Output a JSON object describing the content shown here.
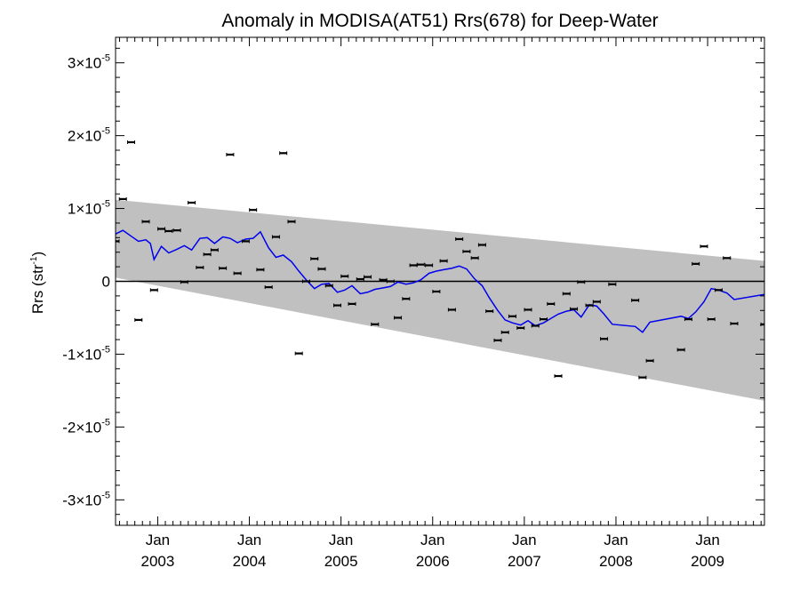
{
  "chart_data": {
    "type": "scatter",
    "title": "Anomaly in MODISA(AT51) Rrs(678) for Deep-Water",
    "ylabel": {
      "base": "Rrs (str",
      "sup": "-1",
      "end": ")"
    },
    "xlabel": "",
    "xlim": [
      2002.54,
      2009.62
    ],
    "ylim": [
      -3.35e-05,
      3.35e-05
    ],
    "grid": false,
    "x_ticks": [
      {
        "x": 2003.0,
        "month": "Jan",
        "year": "2003"
      },
      {
        "x": 2004.0,
        "month": "Jan",
        "year": "2004"
      },
      {
        "x": 2005.0,
        "month": "Jan",
        "year": "2005"
      },
      {
        "x": 2006.0,
        "month": "Jan",
        "year": "2006"
      },
      {
        "x": 2007.0,
        "month": "Jan",
        "year": "2007"
      },
      {
        "x": 2008.0,
        "month": "Jan",
        "year": "2008"
      },
      {
        "x": 2009.0,
        "month": "Jan",
        "year": "2009"
      }
    ],
    "y_ticks": [
      {
        "y": 3e-05,
        "mant": "3×10",
        "exp": "-5"
      },
      {
        "y": 2e-05,
        "mant": "2×10",
        "exp": "-5"
      },
      {
        "y": 1e-05,
        "mant": "1×10",
        "exp": "-5"
      },
      {
        "y": 0,
        "mant": "0",
        "exp": ""
      },
      {
        "y": -1e-05,
        "mant": "-1×10",
        "exp": "-5"
      },
      {
        "y": -2e-05,
        "mant": "-2×10",
        "exp": "-5"
      },
      {
        "y": -3e-05,
        "mant": "-3×10",
        "exp": "-5"
      }
    ],
    "band": {
      "upper": [
        [
          2002.54,
          1.12e-05
        ],
        [
          2009.62,
          2.8e-06
        ]
      ],
      "lower": [
        [
          2002.54,
          5e-07
        ],
        [
          2009.62,
          -1.64e-05
        ]
      ],
      "color": "#c0c0c0"
    },
    "zero_line": 0,
    "colors": {
      "trend": "#0000ee",
      "points": "#000000",
      "band": "#c0c0c0",
      "zero": "#000000"
    },
    "series": [
      {
        "kind": "points",
        "values": [
          [
            2002.54,
            5.5e-06
          ],
          [
            2002.62,
            1.13e-05
          ],
          [
            2002.71,
            1.91e-05
          ],
          [
            2002.79,
            -5.3e-06
          ],
          [
            2002.87,
            8.2e-06
          ],
          [
            2002.96,
            -1.2e-06
          ],
          [
            2003.04,
            7.2e-06
          ],
          [
            2003.12,
            6.9e-06
          ],
          [
            2003.21,
            7e-06
          ],
          [
            2003.29,
            -1e-07
          ],
          [
            2003.37,
            1.08e-05
          ],
          [
            2003.46,
            1.9e-06
          ],
          [
            2003.54,
            3.7e-06
          ],
          [
            2003.62,
            4.3e-06
          ],
          [
            2003.71,
            1.8e-06
          ],
          [
            2003.79,
            1.74e-05
          ],
          [
            2003.87,
            1.1e-06
          ],
          [
            2003.96,
            5.5e-06
          ],
          [
            2004.04,
            9.8e-06
          ],
          [
            2004.12,
            1.6e-06
          ],
          [
            2004.21,
            -8e-07
          ],
          [
            2004.29,
            6.1e-06
          ],
          [
            2004.37,
            1.76e-05
          ],
          [
            2004.46,
            8.2e-06
          ],
          [
            2004.54,
            -9.9e-06
          ],
          [
            2004.62,
            0.0
          ],
          [
            2004.71,
            3.1e-06
          ],
          [
            2004.79,
            1.7e-06
          ],
          [
            2004.87,
            -6e-07
          ],
          [
            2004.96,
            -3.3e-06
          ],
          [
            2005.04,
            7e-07
          ],
          [
            2005.12,
            -3.1e-06
          ],
          [
            2005.21,
            3e-07
          ],
          [
            2005.29,
            6e-07
          ],
          [
            2005.37,
            -5.9e-06
          ],
          [
            2005.46,
            2e-07
          ],
          [
            2005.54,
            0.0
          ],
          [
            2005.62,
            -5e-06
          ],
          [
            2005.71,
            -2.4e-06
          ],
          [
            2005.79,
            2.2e-06
          ],
          [
            2005.87,
            2.3e-06
          ],
          [
            2005.96,
            2.2e-06
          ],
          [
            2006.04,
            -1.4e-06
          ],
          [
            2006.12,
            2.8e-06
          ],
          [
            2006.21,
            -3.9e-06
          ],
          [
            2006.29,
            5.8e-06
          ],
          [
            2006.37,
            4.1e-06
          ],
          [
            2006.46,
            3.2e-06
          ],
          [
            2006.54,
            5e-06
          ],
          [
            2006.62,
            -4.1e-06
          ],
          [
            2006.71,
            -8.1e-06
          ],
          [
            2006.79,
            -7e-06
          ],
          [
            2006.87,
            -4.8e-06
          ],
          [
            2006.96,
            -6.4e-06
          ],
          [
            2007.04,
            -3.9e-06
          ],
          [
            2007.12,
            -6.1e-06
          ],
          [
            2007.21,
            -5.2e-06
          ],
          [
            2007.29,
            -3.1e-06
          ],
          [
            2007.37,
            -1.3e-05
          ],
          [
            2007.46,
            -1.7e-06
          ],
          [
            2007.54,
            -3.8e-06
          ],
          [
            2007.62,
            -1e-07
          ],
          [
            2007.71,
            -3.3e-06
          ],
          [
            2007.79,
            -2.8e-06
          ],
          [
            2007.87,
            -7.9e-06
          ],
          [
            2007.96,
            -4e-07
          ],
          [
            2008.21,
            -2.6e-06
          ],
          [
            2008.29,
            -1.32e-05
          ],
          [
            2008.37,
            -1.09e-05
          ],
          [
            2008.71,
            -9.4e-06
          ],
          [
            2008.79,
            -5.2e-06
          ],
          [
            2008.87,
            2.4e-06
          ],
          [
            2008.96,
            4.8e-06
          ],
          [
            2009.04,
            -5.2e-06
          ],
          [
            2009.12,
            -1.2e-06
          ],
          [
            2009.21,
            3.2e-06
          ],
          [
            2009.29,
            -5.8e-06
          ],
          [
            2009.62,
            -5.9e-06
          ]
        ]
      },
      {
        "kind": "trend",
        "values": [
          [
            2002.54,
            6.5e-06
          ],
          [
            2002.62,
            7e-06
          ],
          [
            2002.71,
            6.2e-06
          ],
          [
            2002.79,
            5.5e-06
          ],
          [
            2002.87,
            5.7e-06
          ],
          [
            2002.92,
            5.2e-06
          ],
          [
            2002.96,
            3e-06
          ],
          [
            2003.04,
            4.8e-06
          ],
          [
            2003.12,
            3.9e-06
          ],
          [
            2003.21,
            4.4e-06
          ],
          [
            2003.29,
            4.9e-06
          ],
          [
            2003.37,
            4.3e-06
          ],
          [
            2003.46,
            5.9e-06
          ],
          [
            2003.54,
            6e-06
          ],
          [
            2003.62,
            5.2e-06
          ],
          [
            2003.71,
            6.1e-06
          ],
          [
            2003.79,
            5.9e-06
          ],
          [
            2003.87,
            5.3e-06
          ],
          [
            2003.96,
            5.8e-06
          ],
          [
            2004.04,
            5.9e-06
          ],
          [
            2004.12,
            6.8e-06
          ],
          [
            2004.21,
            4.6e-06
          ],
          [
            2004.29,
            3.3e-06
          ],
          [
            2004.37,
            3.6e-06
          ],
          [
            2004.46,
            2.7e-06
          ],
          [
            2004.54,
            1.4e-06
          ],
          [
            2004.62,
            2e-07
          ],
          [
            2004.71,
            -1e-06
          ],
          [
            2004.79,
            -4e-07
          ],
          [
            2004.87,
            -3e-07
          ],
          [
            2004.96,
            -1.5e-06
          ],
          [
            2005.04,
            -1.2e-06
          ],
          [
            2005.12,
            -6e-07
          ],
          [
            2005.21,
            -1.7e-06
          ],
          [
            2005.29,
            -1.5e-06
          ],
          [
            2005.37,
            -1.1e-06
          ],
          [
            2005.46,
            -9e-07
          ],
          [
            2005.54,
            -7e-07
          ],
          [
            2005.62,
            -1e-07
          ],
          [
            2005.71,
            -4e-07
          ],
          [
            2005.79,
            -2e-07
          ],
          [
            2005.87,
            2e-07
          ],
          [
            2005.96,
            1.1e-06
          ],
          [
            2006.04,
            1.4e-06
          ],
          [
            2006.12,
            1.6e-06
          ],
          [
            2006.21,
            1.8e-06
          ],
          [
            2006.29,
            2.1e-06
          ],
          [
            2006.37,
            1.7e-06
          ],
          [
            2006.46,
            3e-07
          ],
          [
            2006.54,
            -6e-07
          ],
          [
            2006.62,
            -2.3e-06
          ],
          [
            2006.71,
            -4e-06
          ],
          [
            2006.79,
            -5.3e-06
          ],
          [
            2006.87,
            -5.7e-06
          ],
          [
            2006.96,
            -6e-06
          ],
          [
            2007.04,
            -5.4e-06
          ],
          [
            2007.12,
            -6.1e-06
          ],
          [
            2007.21,
            -5.7e-06
          ],
          [
            2007.29,
            -5.1e-06
          ],
          [
            2007.37,
            -4.5e-06
          ],
          [
            2007.46,
            -4.1e-06
          ],
          [
            2007.54,
            -3.9e-06
          ],
          [
            2007.62,
            -4.9e-06
          ],
          [
            2007.71,
            -3.2e-06
          ],
          [
            2007.79,
            -3.4e-06
          ],
          [
            2007.87,
            -4.5e-06
          ],
          [
            2007.96,
            -5.9e-06
          ],
          [
            2008.21,
            -6.2e-06
          ],
          [
            2008.29,
            -7e-06
          ],
          [
            2008.37,
            -5.6e-06
          ],
          [
            2008.71,
            -4.8e-06
          ],
          [
            2008.79,
            -5.1e-06
          ],
          [
            2008.87,
            -4.2e-06
          ],
          [
            2008.96,
            -2.8e-06
          ],
          [
            2009.04,
            -1e-06
          ],
          [
            2009.12,
            -1.2e-06
          ],
          [
            2009.21,
            -1.6e-06
          ],
          [
            2009.29,
            -2.5e-06
          ],
          [
            2009.62,
            -1.8e-06
          ]
        ]
      }
    ]
  }
}
